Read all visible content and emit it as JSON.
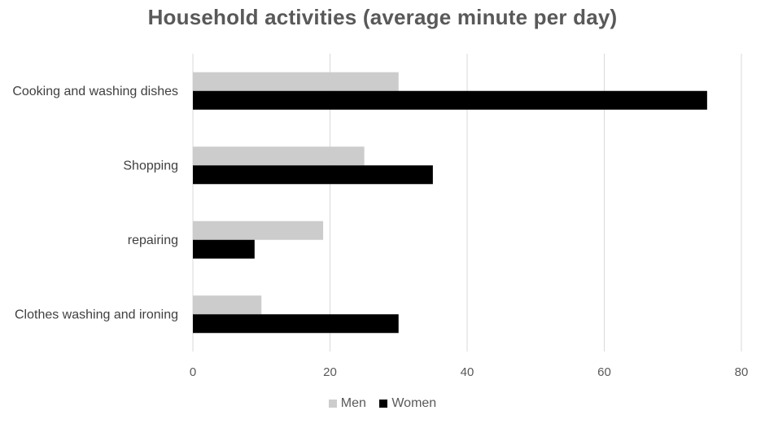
{
  "chart_data": {
    "type": "bar",
    "orientation": "horizontal",
    "title": "Household activities (average minute per day)",
    "xlabel": "",
    "ylabel": "",
    "categories": [
      "Cooking and washing dishes",
      "Shopping",
      "repairing",
      "Clothes washing and ironing"
    ],
    "series": [
      {
        "name": "Men",
        "values": [
          30,
          25,
          19,
          10
        ],
        "color": "#cccccc"
      },
      {
        "name": "Women",
        "values": [
          75,
          35,
          9,
          30
        ],
        "color": "#000000"
      }
    ],
    "xlim": [
      0,
      80
    ],
    "xticks": [
      0,
      20,
      40,
      60,
      80
    ],
    "grid": true,
    "legend_position": "bottom"
  }
}
